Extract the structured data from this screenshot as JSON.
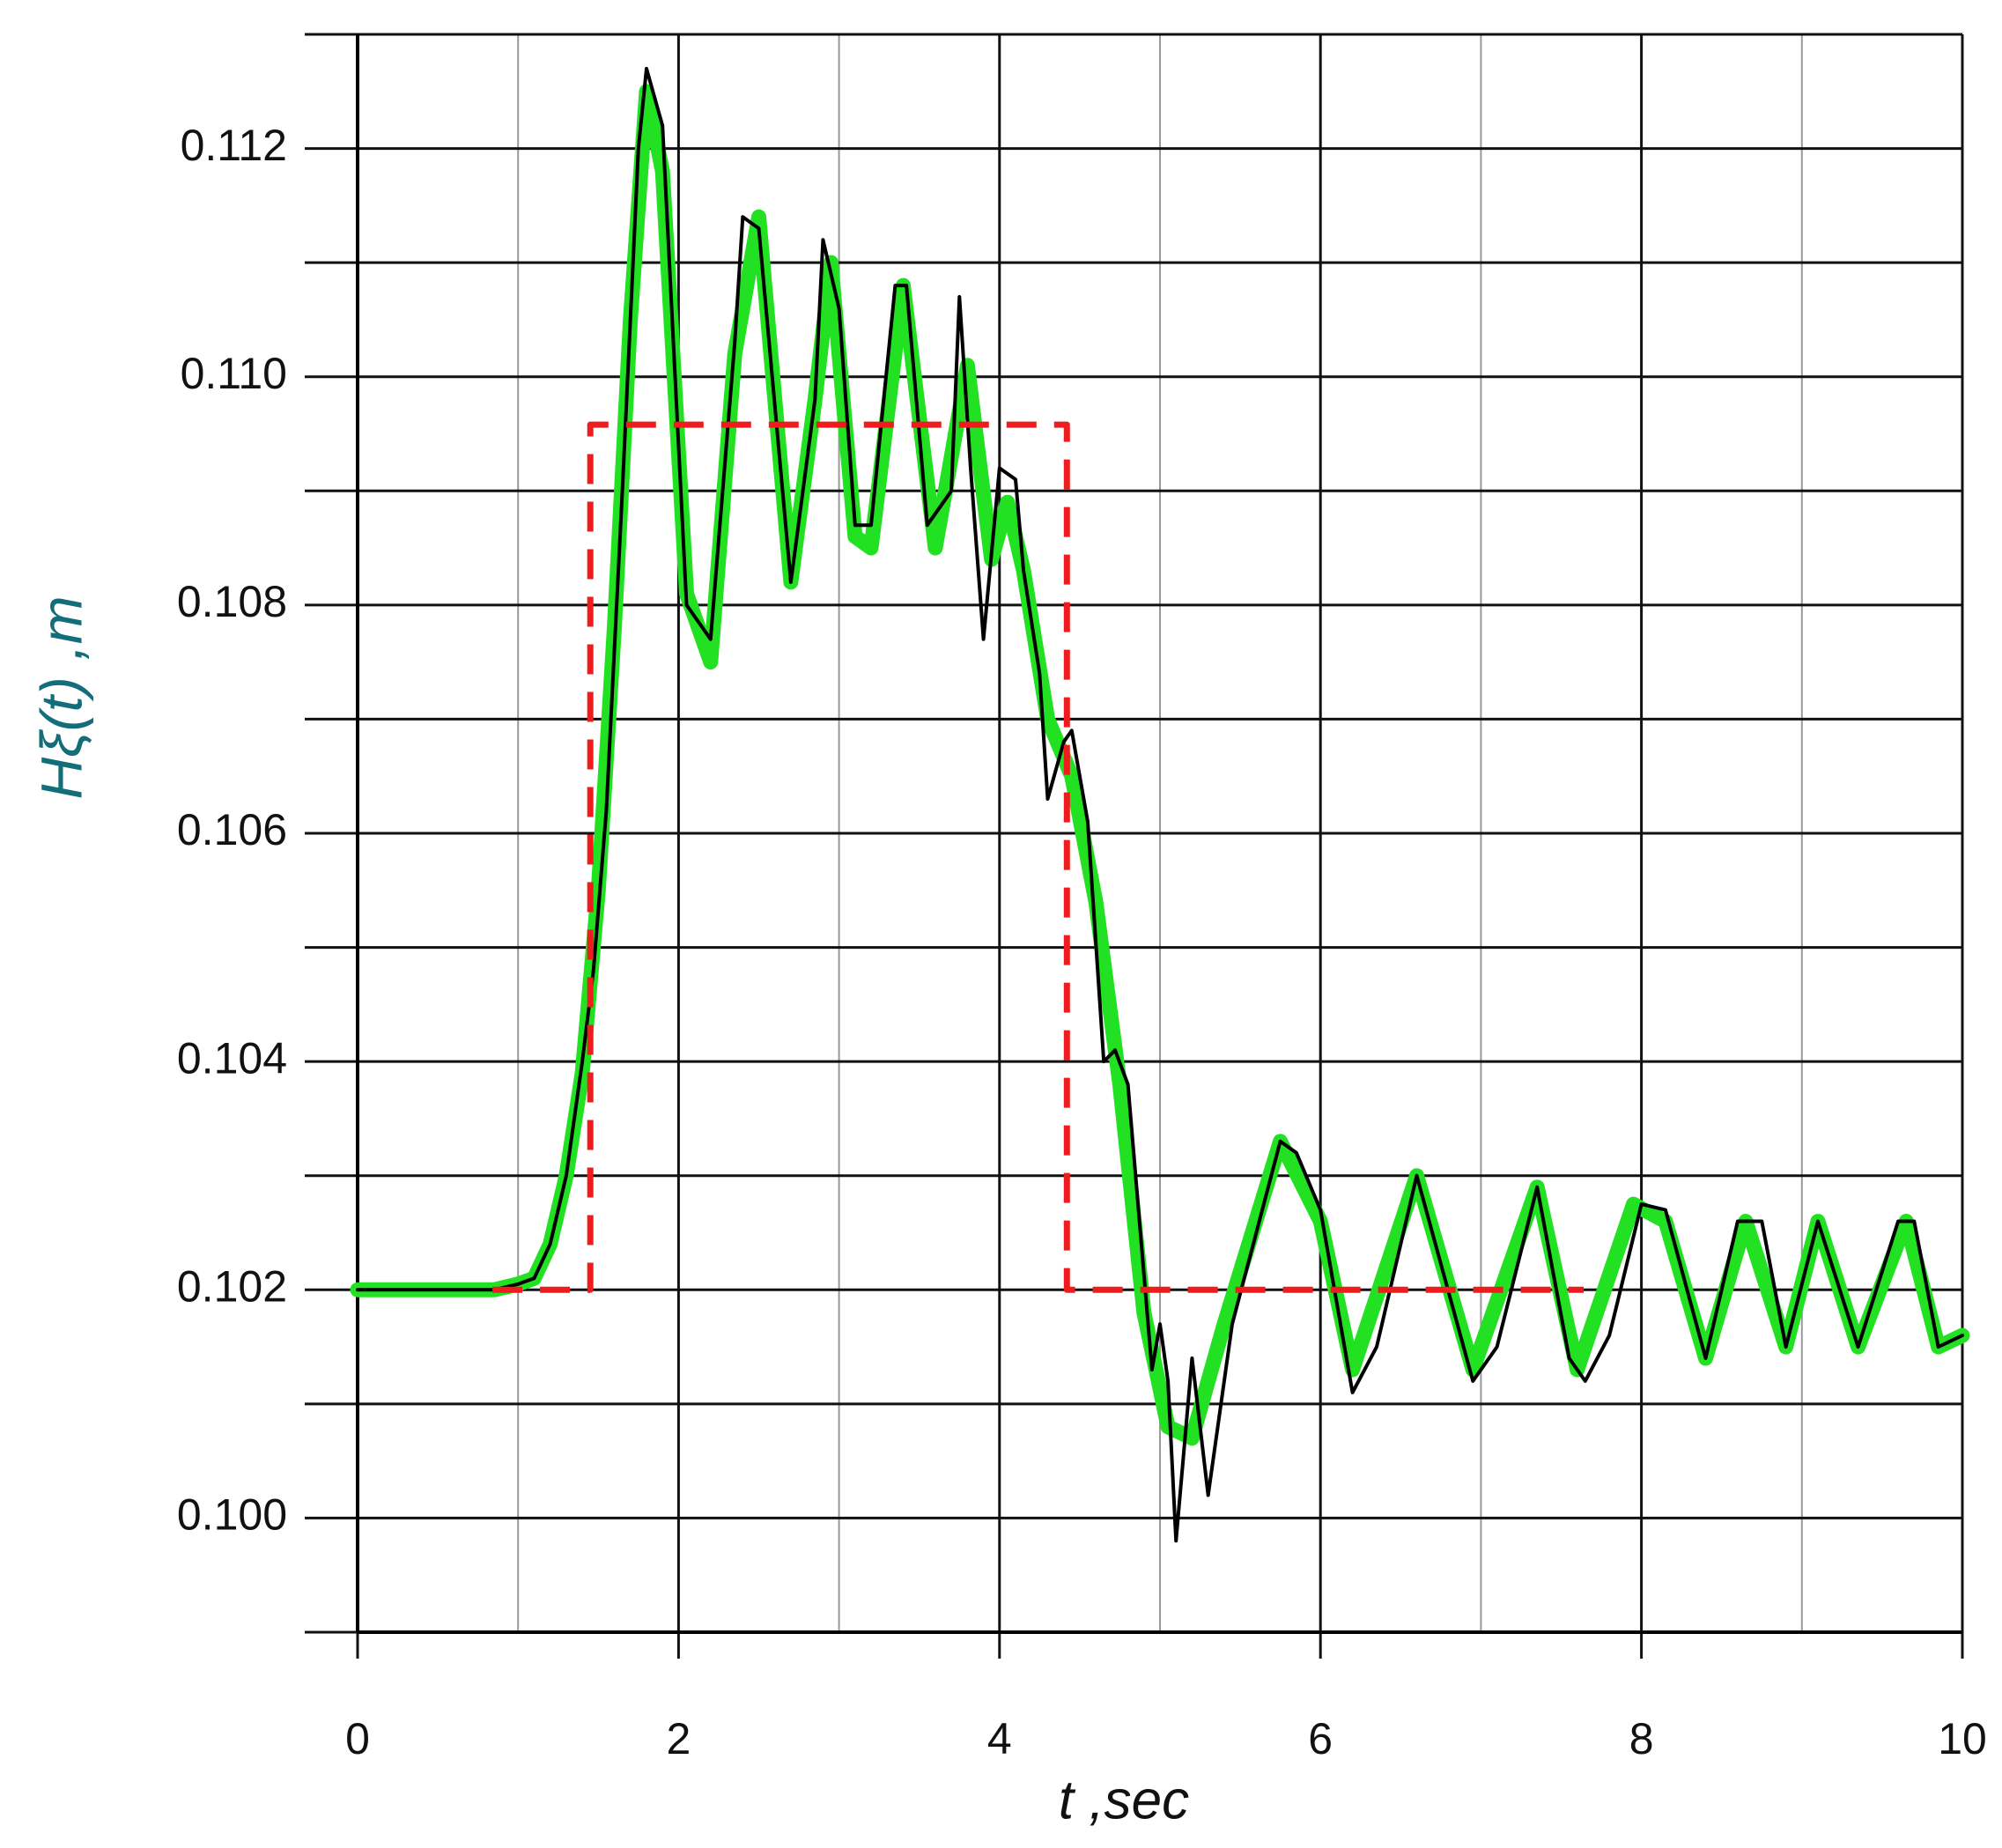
{
  "chart_data": {
    "type": "line",
    "x_label": "t ,sec",
    "y_label": "Hξ(t) ,m",
    "xlim": [
      0,
      10
    ],
    "xticks": [
      0,
      2,
      4,
      6,
      8,
      10
    ],
    "x_minor_grid": [
      1,
      3,
      5,
      7,
      9
    ],
    "ylim": [
      0.099,
      0.113
    ],
    "yticks": [
      {
        "value": 0.1,
        "label": "0.100"
      },
      {
        "value": 0.102,
        "label": "0.102"
      },
      {
        "value": 0.104,
        "label": "0.104"
      },
      {
        "value": 0.106,
        "label": "0.106"
      },
      {
        "value": 0.108,
        "label": "0.108"
      },
      {
        "value": 0.11,
        "label": "0.110"
      },
      {
        "value": 0.112,
        "label": "0.112"
      }
    ],
    "y_minor_grid": [
      0.099,
      0.101,
      0.103,
      0.105,
      0.107,
      0.109,
      0.111,
      0.113
    ],
    "grid": true,
    "series": [
      {
        "name": "green",
        "color": "#22e022",
        "width": 17,
        "dash": null,
        "x": [
          0,
          0.85,
          1.0,
          1.1,
          1.2,
          1.3,
          1.4,
          1.5,
          1.6,
          1.7,
          1.8,
          1.9,
          2.05,
          2.2,
          2.35,
          2.5,
          2.7,
          2.85,
          2.95,
          3.1,
          3.2,
          3.4,
          3.6,
          3.8,
          3.95,
          4.05,
          4.15,
          4.3,
          4.45,
          4.6,
          4.75,
          4.9,
          5.05,
          5.2,
          5.4,
          5.75,
          6.0,
          6.2,
          6.6,
          6.95,
          7.35,
          7.6,
          7.95,
          8.15,
          8.4,
          8.65,
          8.9,
          9.1,
          9.35,
          9.65,
          9.85,
          10
        ],
        "values": [
          0.102,
          0.102,
          0.10205,
          0.1021,
          0.1024,
          0.103,
          0.1039,
          0.1055,
          0.1078,
          0.1105,
          0.1125,
          0.1118,
          0.1081,
          0.1075,
          0.1102,
          0.1114,
          0.1082,
          0.1098,
          0.111,
          0.1086,
          0.1085,
          0.1108,
          0.1085,
          0.1101,
          0.1084,
          0.1089,
          0.1083,
          0.107,
          0.1065,
          0.1054,
          0.1038,
          0.1018,
          0.1008,
          0.1007,
          0.1017,
          0.1033,
          0.1026,
          0.1013,
          0.103,
          0.1013,
          0.1029,
          0.1013,
          0.10275,
          0.1026,
          0.1014,
          0.1026,
          0.1015,
          0.1026,
          0.1015,
          0.1026,
          0.1015,
          0.1016
        ]
      },
      {
        "name": "black",
        "color": "#000000",
        "width": 4,
        "dash": null,
        "x": [
          0,
          0.85,
          1.0,
          1.1,
          1.2,
          1.3,
          1.4,
          1.47,
          1.55,
          1.65,
          1.75,
          1.8,
          1.9,
          2.05,
          2.2,
          2.35,
          2.4,
          2.5,
          2.7,
          2.85,
          2.9,
          3.0,
          3.1,
          3.2,
          3.35,
          3.42,
          3.55,
          3.7,
          3.75,
          3.82,
          3.9,
          4.0,
          4.1,
          4.15,
          4.25,
          4.3,
          4.4,
          4.45,
          4.55,
          4.65,
          4.72,
          4.8,
          4.95,
          5.0,
          5.05,
          5.1,
          5.2,
          5.3,
          5.45,
          5.75,
          5.85,
          6.0,
          6.2,
          6.35,
          6.6,
          6.95,
          7.1,
          7.35,
          7.55,
          7.65,
          7.8,
          8.0,
          8.15,
          8.4,
          8.6,
          8.75,
          8.9,
          9.1,
          9.35,
          9.6,
          9.7,
          9.85,
          10
        ],
        "values": [
          0.102,
          0.102,
          0.10205,
          0.1021,
          0.1024,
          0.103,
          0.104,
          0.1048,
          0.1062,
          0.109,
          0.112,
          0.1127,
          0.1122,
          0.108,
          0.1077,
          0.1103,
          0.1114,
          0.1113,
          0.1082,
          0.1098,
          0.1112,
          0.1106,
          0.1087,
          0.1087,
          0.1108,
          0.1108,
          0.1087,
          0.109,
          0.1107,
          0.1092,
          0.1077,
          0.1092,
          0.1091,
          0.1083,
          0.1074,
          0.1063,
          0.1068,
          0.1069,
          0.1061,
          0.104,
          0.1041,
          0.1038,
          0.1013,
          0.1017,
          0.1012,
          0.0998,
          0.1014,
          0.1002,
          0.1017,
          0.1033,
          0.1032,
          0.1027,
          0.1011,
          0.1015,
          0.103,
          0.1012,
          0.1015,
          0.1029,
          0.1014,
          0.1012,
          0.1016,
          0.10275,
          0.1027,
          0.1014,
          0.1026,
          0.1026,
          0.1015,
          0.1026,
          0.1015,
          0.1026,
          0.1026,
          0.1015,
          0.1016
        ]
      },
      {
        "name": "red",
        "color": "#ee1c1c",
        "width": 7,
        "dash": "34 20",
        "x": [
          0.84,
          1.45,
          1.45,
          4.42,
          4.42,
          7.64
        ],
        "values": [
          0.102,
          0.102,
          0.10958,
          0.10958,
          0.102,
          0.102
        ]
      }
    ]
  }
}
